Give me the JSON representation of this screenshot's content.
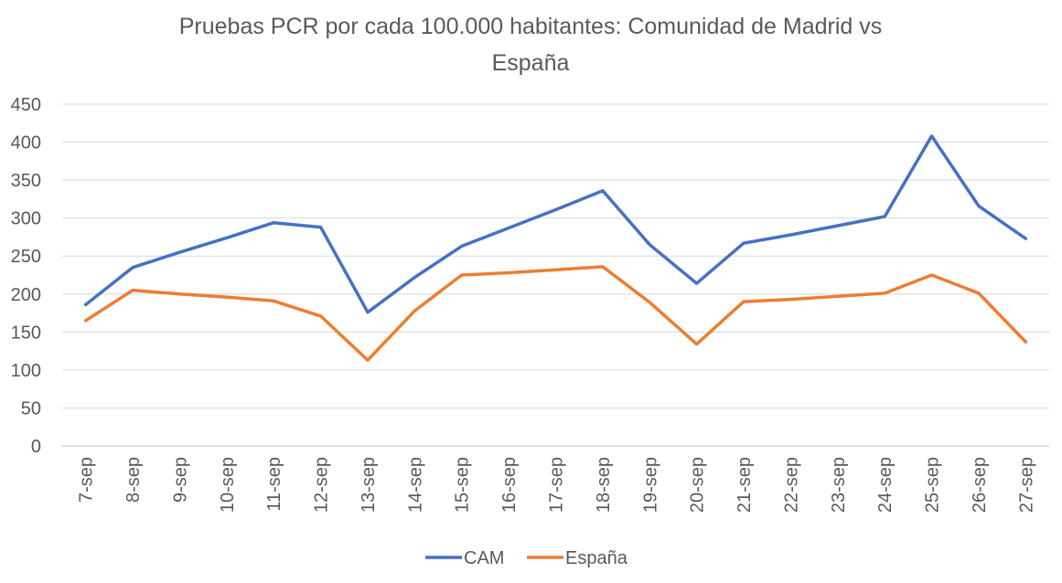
{
  "chart_data": {
    "type": "line",
    "title_lines": [
      "Pruebas PCR por cada 100.000 habitantes: Comunidad de Madrid vs",
      "España"
    ],
    "xlabel": "",
    "ylabel": "",
    "ylim": [
      0,
      450
    ],
    "yticks": [
      0,
      50,
      100,
      150,
      200,
      250,
      300,
      350,
      400,
      450
    ],
    "grid": true,
    "legend_position": "bottom",
    "categories": [
      "7-sep",
      "8-sep",
      "9-sep",
      "10-sep",
      "11-sep",
      "12-sep",
      "13-sep",
      "14-sep",
      "15-sep",
      "16-sep",
      "17-sep",
      "18-sep",
      "19-sep",
      "20-sep",
      "21-sep",
      "22-sep",
      "23-sep",
      "24-sep",
      "25-sep",
      "26-sep",
      "27-sep"
    ],
    "series": [
      {
        "name": "CAM",
        "color": "#4472C4",
        "values": [
          186,
          235,
          255,
          274,
          294,
          288,
          176,
          222,
          263,
          287,
          311,
          336,
          265,
          214,
          267,
          278,
          290,
          302,
          408,
          316,
          273
        ]
      },
      {
        "name": "España",
        "color": "#ED7D31",
        "values": [
          165,
          205,
          200,
          196,
          191,
          171,
          113,
          178,
          225,
          228,
          232,
          236,
          189,
          134,
          190,
          193,
          197,
          201,
          225,
          201,
          137
        ]
      }
    ]
  }
}
